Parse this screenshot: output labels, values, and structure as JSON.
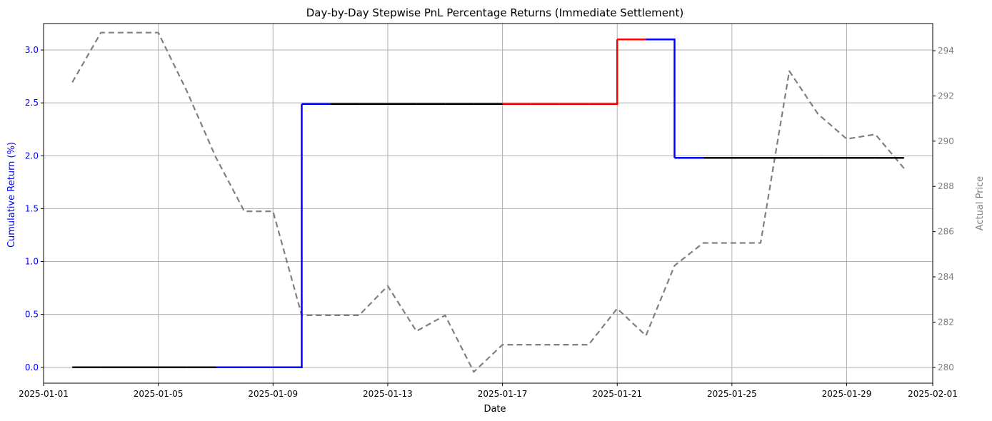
{
  "chart_data": {
    "type": "line",
    "title": "Day-by-Day Stepwise PnL Percentage Returns (Immediate Settlement)",
    "xlabel": "Date",
    "ylabel_left": "Cumulative Return (%)",
    "ylabel_right": "Actual Price",
    "grid": true,
    "x_ticks": [
      "2025-01-01",
      "2025-01-05",
      "2025-01-09",
      "2025-01-13",
      "2025-01-17",
      "2025-01-21",
      "2025-01-25",
      "2025-01-29",
      "2025-02-01"
    ],
    "y_left_ticks": [
      "0.0",
      "0.5",
      "1.0",
      "1.5",
      "2.0",
      "2.5",
      "3.0"
    ],
    "y_right_ticks": [
      "280",
      "282",
      "284",
      "286",
      "288",
      "290",
      "292",
      "294"
    ],
    "xlim": [
      "2025-01-01",
      "2025-02-01"
    ],
    "ylim_left": [
      -0.15,
      3.25
    ],
    "ylim_right": [
      279.3,
      295.2
    ],
    "colors": {
      "long": "#0000ff",
      "short": "#ff0000",
      "flat": "#000000",
      "price": "#808080",
      "left_axis_text": "#0000ff",
      "right_axis_text": "#808080"
    },
    "series": [
      {
        "style": "step",
        "points": [
          {
            "date": "2025-01-02",
            "value": 0.0,
            "color": "flat"
          },
          {
            "date": "2025-01-03",
            "value": 0.0,
            "color": "flat"
          },
          {
            "date": "2025-01-04",
            "value": 0.0,
            "color": "flat"
          },
          {
            "date": "2025-01-05",
            "value": 0.0,
            "color": "flat"
          },
          {
            "date": "2025-01-06",
            "value": 0.0,
            "color": "flat"
          },
          {
            "date": "2025-01-07",
            "value": 0.0,
            "color": "long"
          },
          {
            "date": "2025-01-08",
            "value": 0.0,
            "color": "long"
          },
          {
            "date": "2025-01-09",
            "value": 0.0,
            "color": "long"
          },
          {
            "date": "2025-01-10",
            "value": 2.49,
            "color": "long"
          },
          {
            "date": "2025-01-11",
            "value": 2.49,
            "color": "flat"
          },
          {
            "date": "2025-01-12",
            "value": 2.49,
            "color": "flat"
          },
          {
            "date": "2025-01-13",
            "value": 2.49,
            "color": "flat"
          },
          {
            "date": "2025-01-14",
            "value": 2.49,
            "color": "flat"
          },
          {
            "date": "2025-01-15",
            "value": 2.49,
            "color": "flat"
          },
          {
            "date": "2025-01-16",
            "value": 2.49,
            "color": "flat"
          },
          {
            "date": "2025-01-17",
            "value": 2.49,
            "color": "short"
          },
          {
            "date": "2025-01-18",
            "value": 2.49,
            "color": "short"
          },
          {
            "date": "2025-01-19",
            "value": 2.49,
            "color": "short"
          },
          {
            "date": "2025-01-20",
            "value": 2.49,
            "color": "short"
          },
          {
            "date": "2025-01-21",
            "value": 3.1,
            "color": "short"
          },
          {
            "date": "2025-01-22",
            "value": 3.1,
            "color": "long"
          },
          {
            "date": "2025-01-23",
            "value": 1.98,
            "color": "long"
          },
          {
            "date": "2025-01-24",
            "value": 1.98,
            "color": "flat"
          },
          {
            "date": "2025-01-25",
            "value": 1.98,
            "color": "flat"
          },
          {
            "date": "2025-01-26",
            "value": 1.98,
            "color": "flat"
          },
          {
            "date": "2025-01-27",
            "value": 1.98,
            "color": "flat"
          },
          {
            "date": "2025-01-28",
            "value": 1.98,
            "color": "flat"
          },
          {
            "date": "2025-01-29",
            "value": 1.98,
            "color": "flat"
          },
          {
            "date": "2025-01-30",
            "value": 1.98,
            "color": "flat"
          },
          {
            "date": "2025-01-31",
            "value": 1.98,
            "color": "flat"
          }
        ]
      },
      {
        "style": "dashed",
        "axis": "right",
        "x": [
          "2025-01-02",
          "2025-01-03",
          "2025-01-04",
          "2025-01-05",
          "2025-01-06",
          "2025-01-07",
          "2025-01-08",
          "2025-01-09",
          "2025-01-10",
          "2025-01-11",
          "2025-01-12",
          "2025-01-13",
          "2025-01-14",
          "2025-01-15",
          "2025-01-16",
          "2025-01-17",
          "2025-01-18",
          "2025-01-19",
          "2025-01-20",
          "2025-01-21",
          "2025-01-22",
          "2025-01-23",
          "2025-01-24",
          "2025-01-25",
          "2025-01-26",
          "2025-01-27",
          "2025-01-28",
          "2025-01-29",
          "2025-01-30",
          "2025-01-31"
        ],
        "values": [
          292.6,
          294.8,
          294.8,
          294.8,
          292.2,
          289.3,
          286.9,
          286.9,
          282.3,
          282.3,
          282.3,
          283.6,
          281.6,
          282.3,
          279.8,
          281.0,
          281.0,
          281.0,
          281.0,
          282.6,
          281.4,
          284.5,
          285.5,
          285.5,
          285.5,
          293.1,
          291.2,
          290.1,
          290.3,
          288.8
        ]
      }
    ]
  }
}
